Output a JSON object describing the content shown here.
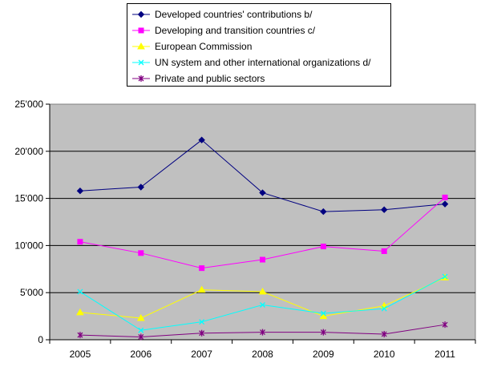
{
  "chart_data": {
    "type": "line",
    "title": "",
    "xlabel": "",
    "ylabel": "",
    "categories": [
      "2005",
      "2006",
      "2007",
      "2008",
      "2009",
      "2010",
      "2011"
    ],
    "ylim": [
      0,
      25000
    ],
    "yticks": [
      0,
      5000,
      10000,
      15000,
      20000,
      25000
    ],
    "ytick_labels": [
      "0",
      "5'000",
      "10'000",
      "15'000",
      "20'000",
      "25'000"
    ],
    "grid": true,
    "legend_position": "top",
    "series": [
      {
        "name": "Developed countries' contributions b/",
        "color": "#000080",
        "marker": "diamond",
        "values": [
          15800,
          16200,
          21200,
          15600,
          13600,
          13800,
          14400
        ]
      },
      {
        "name": "Developing and transition countries c/",
        "color": "#ff00ff",
        "marker": "square",
        "values": [
          10400,
          9200,
          7600,
          8500,
          9900,
          9400,
          15100
        ]
      },
      {
        "name": "European Commission",
        "color": "#ffff00",
        "marker": "triangle",
        "values": [
          2900,
          2300,
          5300,
          5100,
          2500,
          3600,
          6600
        ]
      },
      {
        "name": "UN system and other international organizations d/",
        "color": "#00ffff",
        "marker": "x",
        "values": [
          5100,
          1000,
          1900,
          3700,
          2800,
          3300,
          6700
        ]
      },
      {
        "name": "Private and public sectors",
        "color": "#800080",
        "marker": "star",
        "values": [
          500,
          300,
          700,
          800,
          800,
          600,
          1600
        ]
      }
    ]
  }
}
